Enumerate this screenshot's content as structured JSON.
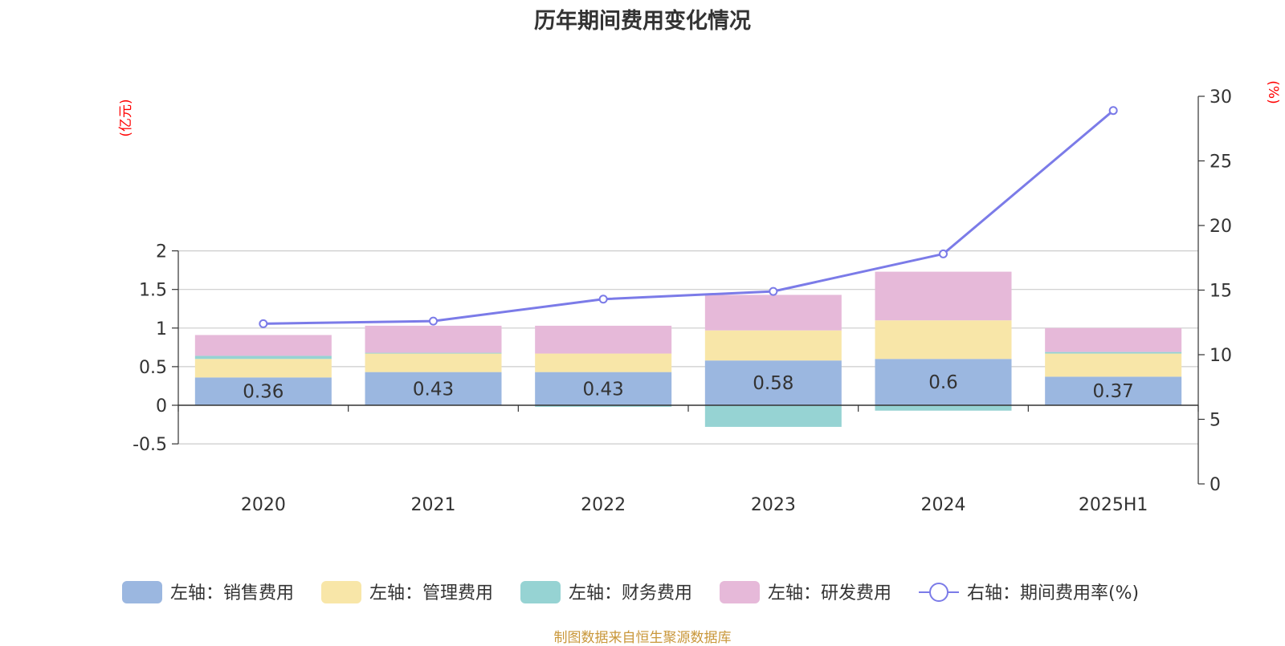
{
  "title": "历年期间费用变化情况",
  "source": "制图数据来自恒生聚源数据库",
  "left_axis_unit": "(亿元)",
  "right_axis_unit": "(%)",
  "colors": {
    "sales": "#9bb7e0",
    "admin": "#f8e6a8",
    "finance": "#96d3d3",
    "rd": "#e6b9d9",
    "rate": "#7b7be8",
    "grid": "#cccccc",
    "unit_label": "#ff0000"
  },
  "chart_data": {
    "type": "bar",
    "stacked": true,
    "categories": [
      "2020",
      "2021",
      "2022",
      "2023",
      "2024",
      "2025H1"
    ],
    "series": [
      {
        "name": "左轴：销售费用",
        "key": "sales",
        "axis": "left",
        "values": [
          0.36,
          0.43,
          0.43,
          0.58,
          0.6,
          0.37
        ],
        "data_labels": [
          "0.36",
          "0.43",
          "0.43",
          "0.58",
          "0.6",
          "0.37"
        ]
      },
      {
        "name": "左轴：管理费用",
        "key": "admin",
        "axis": "left",
        "values": [
          0.24,
          0.24,
          0.24,
          0.39,
          0.5,
          0.3
        ]
      },
      {
        "name": "左轴：财务费用",
        "key": "finance",
        "axis": "left",
        "values": [
          0.04,
          0.01,
          -0.02,
          -0.28,
          -0.07,
          0.02
        ]
      },
      {
        "name": "左轴：研发费用",
        "key": "rd",
        "axis": "left",
        "values": [
          0.27,
          0.35,
          0.36,
          0.46,
          0.63,
          0.31
        ]
      },
      {
        "name": "右轴：期间费用率(%)",
        "key": "rate",
        "axis": "right",
        "type": "line",
        "values": [
          12.4,
          12.6,
          14.3,
          14.9,
          17.8,
          28.9
        ]
      }
    ],
    "left_axis": {
      "ylim": [
        -0.5,
        2
      ],
      "ticks": [
        2,
        1.5,
        1,
        0.5,
        0,
        -0.5
      ],
      "tick_labels": [
        "2",
        "1.5",
        "1",
        "0.5",
        "0",
        "-0.5"
      ]
    },
    "right_axis": {
      "ylim": [
        0,
        30
      ],
      "ticks": [
        30,
        25,
        20,
        15,
        10,
        5,
        0
      ],
      "tick_labels": [
        "30",
        "25",
        "20",
        "15",
        "10",
        "5",
        "0"
      ]
    },
    "grid": true,
    "legend_position": "bottom"
  }
}
